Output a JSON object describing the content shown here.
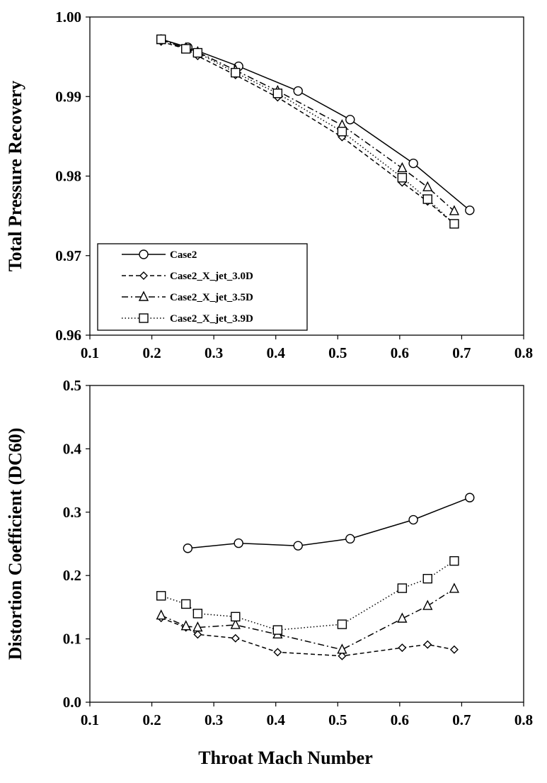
{
  "chart_data": [
    {
      "type": "line",
      "xlabel": "",
      "ylabel": "Total Pressure Recovery",
      "xlim": [
        0.1,
        0.8
      ],
      "ylim": [
        0.96,
        1.0
      ],
      "x_ticks": [
        "0.1",
        "0.2",
        "0.3",
        "0.4",
        "0.5",
        "0.6",
        "0.7",
        "0.8"
      ],
      "y_ticks": [
        "0.96",
        "0.97",
        "0.98",
        "0.99",
        "1.00"
      ],
      "grid": false,
      "legend": "bottom-left",
      "series": [
        {
          "name": "Case2",
          "marker": "circle",
          "dash": "solid",
          "x": [
            0.215,
            0.258,
            0.34,
            0.436,
            0.52,
            0.622,
            0.713
          ],
          "y": [
            0.9972,
            0.9962,
            0.9938,
            0.9907,
            0.9871,
            0.9816,
            0.9757
          ]
        },
        {
          "name": "Case2_X_jet_3.0D",
          "marker": "diamond",
          "dash": "dashed",
          "x": [
            0.215,
            0.255,
            0.274,
            0.335,
            0.403,
            0.507,
            0.604,
            0.645,
            0.688
          ],
          "y": [
            0.9969,
            0.996,
            0.9951,
            0.9927,
            0.9899,
            0.9849,
            0.9792,
            0.9768,
            0.974
          ]
        },
        {
          "name": "Case2_X_jet_3.5D",
          "marker": "triangle",
          "dash": "dashdot",
          "x": [
            0.215,
            0.255,
            0.274,
            0.335,
            0.403,
            0.507,
            0.604,
            0.645,
            0.688
          ],
          "y": [
            0.9971,
            0.9961,
            0.9956,
            0.9933,
            0.9907,
            0.9864,
            0.981,
            0.9786,
            0.9756
          ]
        },
        {
          "name": "Case2_X_jet_3.9D",
          "marker": "square",
          "dash": "dotted",
          "x": [
            0.215,
            0.255,
            0.274,
            0.335,
            0.403,
            0.507,
            0.604,
            0.645,
            0.688
          ],
          "y": [
            0.9972,
            0.996,
            0.9955,
            0.993,
            0.9904,
            0.9856,
            0.9798,
            0.9771,
            0.974
          ]
        }
      ]
    },
    {
      "type": "line",
      "xlabel": "Throat Mach Number",
      "ylabel": "Distortion Coefficient (DC60)",
      "xlim": [
        0.1,
        0.8
      ],
      "ylim": [
        0.0,
        0.5
      ],
      "x_ticks": [
        "0.1",
        "0.2",
        "0.3",
        "0.4",
        "0.5",
        "0.6",
        "0.7",
        "0.8"
      ],
      "y_ticks": [
        "0.0",
        "0.1",
        "0.2",
        "0.3",
        "0.4",
        "0.5"
      ],
      "grid": false,
      "legend": "none",
      "series": [
        {
          "name": "Case2",
          "marker": "circle",
          "dash": "solid",
          "x": [
            0.258,
            0.34,
            0.436,
            0.52,
            0.622,
            0.713
          ],
          "y": [
            0.243,
            0.251,
            0.247,
            0.258,
            0.288,
            0.323
          ]
        },
        {
          "name": "Case2_X_jet_3.0D",
          "marker": "diamond",
          "dash": "dashed",
          "x": [
            0.215,
            0.255,
            0.274,
            0.335,
            0.403,
            0.507,
            0.604,
            0.645,
            0.688
          ],
          "y": [
            0.133,
            0.118,
            0.107,
            0.101,
            0.079,
            0.073,
            0.086,
            0.091,
            0.083
          ]
        },
        {
          "name": "Case2_X_jet_3.5D",
          "marker": "triangle",
          "dash": "dashdot",
          "x": [
            0.215,
            0.255,
            0.274,
            0.335,
            0.403,
            0.507,
            0.604,
            0.645,
            0.688
          ],
          "y": [
            0.137,
            0.12,
            0.118,
            0.122,
            0.107,
            0.083,
            0.132,
            0.152,
            0.179
          ]
        },
        {
          "name": "Case2_X_jet_3.9D",
          "marker": "square",
          "dash": "dotted",
          "x": [
            0.215,
            0.255,
            0.274,
            0.335,
            0.403,
            0.507,
            0.604,
            0.645,
            0.688
          ],
          "y": [
            0.168,
            0.155,
            0.14,
            0.135,
            0.114,
            0.123,
            0.18,
            0.195,
            0.223
          ]
        }
      ]
    }
  ]
}
